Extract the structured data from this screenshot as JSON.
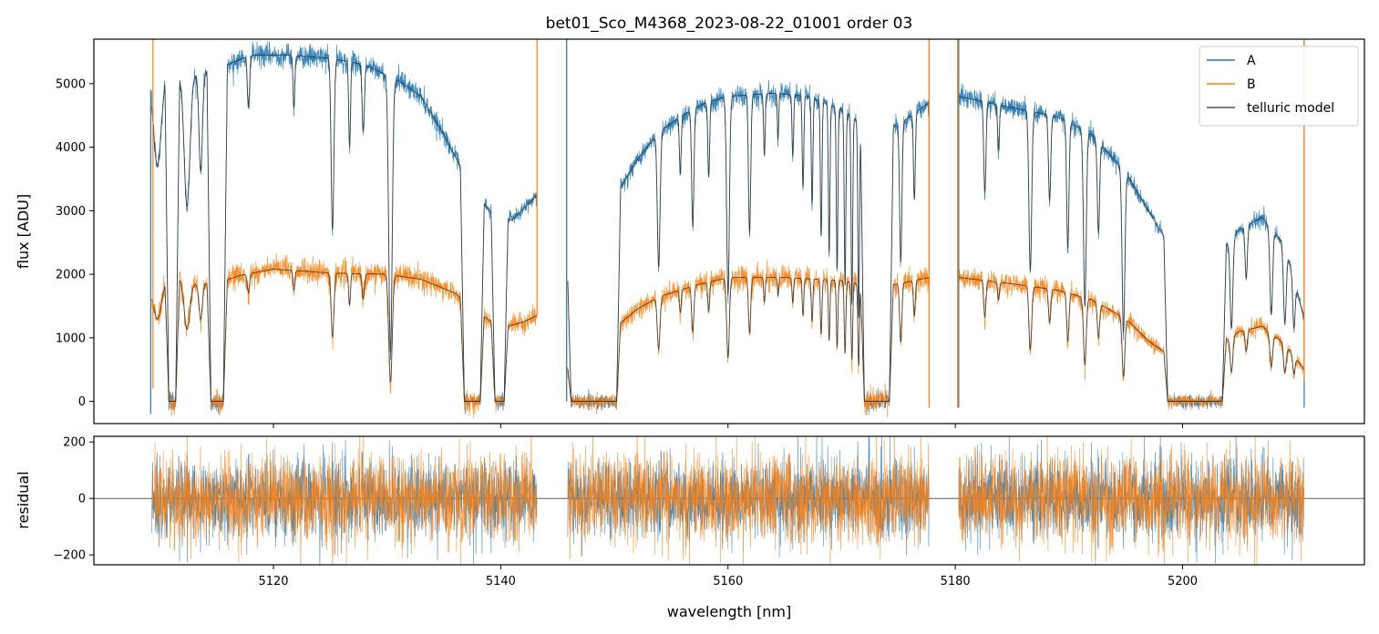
{
  "chart_data": [
    {
      "type": "line",
      "panel": "top",
      "title": "bet01_Sco_M4368_2023-08-22_01001  order 03",
      "xlabel": "",
      "ylabel": "flux [ADU]",
      "xlim": [
        5104.2,
        5216.0
      ],
      "ylim": [
        -350,
        5700
      ],
      "grid": false,
      "legend_position": "top-right",
      "x_ticks": [
        5120,
        5140,
        5160,
        5180,
        5200
      ],
      "y_ticks": [
        0,
        1000,
        2000,
        3000,
        4000,
        5000
      ],
      "y_tick_labels": [
        "0",
        "1000",
        "2000",
        "3000",
        "4000",
        "5000"
      ],
      "series": [
        {
          "name": "A",
          "color": "#1f77b4"
        },
        {
          "name": "B",
          "color": "#ff7f0e"
        },
        {
          "name": "telluric model",
          "color": "#555555"
        }
      ],
      "segments": [
        [
          5109.3,
          5143.2
        ],
        [
          5145.9,
          5177.7
        ],
        [
          5180.3,
          5210.7
        ]
      ],
      "continuum_A": [
        [
          5109.3,
          5200
        ],
        [
          5110,
          5330
        ],
        [
          5112,
          5100
        ],
        [
          5115,
          5230
        ],
        [
          5118,
          5450
        ],
        [
          5121,
          5450
        ],
        [
          5125,
          5400
        ],
        [
          5128,
          5300
        ],
        [
          5131,
          5050
        ],
        [
          5133,
          4800
        ],
        [
          5135,
          4200
        ],
        [
          5137,
          3500
        ],
        [
          5139,
          3000
        ],
        [
          5141,
          2850
        ],
        [
          5143.2,
          3250
        ],
        [
          5145.9,
          2200
        ],
        [
          5148,
          2700
        ],
        [
          5150,
          3200
        ],
        [
          5152,
          3800
        ],
        [
          5154,
          4250
        ],
        [
          5156,
          4500
        ],
        [
          5158,
          4700
        ],
        [
          5160,
          4800
        ],
        [
          5164,
          4850
        ],
        [
          5167,
          4800
        ],
        [
          5170,
          4600
        ],
        [
          5173,
          4200
        ],
        [
          5175,
          4350
        ],
        [
          5177.7,
          4700
        ],
        [
          5180.3,
          4800
        ],
        [
          5185,
          4620
        ],
        [
          5189,
          4480
        ],
        [
          5192,
          4200
        ],
        [
          5195,
          3600
        ],
        [
          5197,
          3000
        ],
        [
          5199,
          2400
        ],
        [
          5201,
          2100
        ],
        [
          5203,
          2300
        ],
        [
          5205,
          2700
        ],
        [
          5207,
          2900
        ],
        [
          5209,
          2450
        ],
        [
          5210.7,
          1300
        ]
      ],
      "continuum_B": [
        [
          5109.3,
          1800
        ],
        [
          5111,
          1980
        ],
        [
          5113,
          1850
        ],
        [
          5115,
          1850
        ],
        [
          5117,
          1980
        ],
        [
          5120,
          2080
        ],
        [
          5125,
          2020
        ],
        [
          5130,
          2000
        ],
        [
          5133,
          1920
        ],
        [
          5136,
          1700
        ],
        [
          5138,
          1400
        ],
        [
          5140,
          1150
        ],
        [
          5142,
          1250
        ],
        [
          5143.2,
          1350
        ],
        [
          5145.9,
          600
        ],
        [
          5148,
          850
        ],
        [
          5150,
          1150
        ],
        [
          5152,
          1450
        ],
        [
          5154,
          1650
        ],
        [
          5157,
          1820
        ],
        [
          5160,
          1950
        ],
        [
          5165,
          1950
        ],
        [
          5170,
          1900
        ],
        [
          5173,
          1800
        ],
        [
          5175,
          1850
        ],
        [
          5177.7,
          1950
        ],
        [
          5180.3,
          1950
        ],
        [
          5185,
          1850
        ],
        [
          5189,
          1750
        ],
        [
          5192,
          1600
        ],
        [
          5195,
          1300
        ],
        [
          5197,
          950
        ],
        [
          5199,
          700
        ],
        [
          5201,
          750
        ],
        [
          5203,
          900
        ],
        [
          5205,
          1100
        ],
        [
          5207,
          1180
        ],
        [
          5209,
          900
        ],
        [
          5210.7,
          500
        ]
      ],
      "saturated_bands": [
        [
          5110.8,
          5111.4
        ],
        [
          5114.5,
          5115.6
        ],
        [
          5136.8,
          5138.2
        ],
        [
          5139.5,
          5140.3
        ],
        [
          5146.2,
          5150.2
        ],
        [
          5172.0,
          5174.2
        ],
        [
          5198.7,
          5203.5
        ]
      ],
      "absorption_lines": [
        [
          5109.8,
          0.3,
          0.35
        ],
        [
          5112.4,
          0.4,
          0.25
        ],
        [
          5113.6,
          0.3,
          0.15
        ],
        [
          5117.8,
          0.15,
          0.1
        ],
        [
          5121.8,
          0.15,
          0.08
        ],
        [
          5125.2,
          0.5,
          0.12
        ],
        [
          5126.7,
          0.25,
          0.08
        ],
        [
          5127.9,
          0.2,
          0.1
        ],
        [
          5130.3,
          0.85,
          0.15
        ],
        [
          5153.9,
          0.5,
          0.12
        ],
        [
          5155.8,
          0.2,
          0.08
        ],
        [
          5156.9,
          0.4,
          0.1
        ],
        [
          5158.3,
          0.25,
          0.08
        ],
        [
          5160.0,
          0.65,
          0.12
        ],
        [
          5161.9,
          0.45,
          0.1
        ],
        [
          5163.2,
          0.2,
          0.07
        ],
        [
          5164.4,
          0.15,
          0.06
        ],
        [
          5165.7,
          0.2,
          0.07
        ],
        [
          5166.6,
          0.3,
          0.07
        ],
        [
          5167.4,
          0.35,
          0.07
        ],
        [
          5168.2,
          0.45,
          0.07
        ],
        [
          5168.9,
          0.5,
          0.07
        ],
        [
          5169.6,
          0.55,
          0.07
        ],
        [
          5170.3,
          0.6,
          0.07
        ],
        [
          5170.9,
          0.65,
          0.07
        ],
        [
          5171.5,
          0.7,
          0.07
        ],
        [
          5175.2,
          0.5,
          0.1
        ],
        [
          5176.4,
          0.3,
          0.08
        ],
        [
          5182.6,
          0.3,
          0.1
        ],
        [
          5183.8,
          0.15,
          0.08
        ],
        [
          5186.6,
          0.55,
          0.12
        ],
        [
          5188.3,
          0.3,
          0.1
        ],
        [
          5189.9,
          0.45,
          0.1
        ],
        [
          5191.4,
          0.65,
          0.12
        ],
        [
          5192.6,
          0.35,
          0.1
        ],
        [
          5194.8,
          0.7,
          0.12
        ],
        [
          5204.3,
          0.55,
          0.12
        ],
        [
          5205.6,
          0.3,
          0.1
        ],
        [
          5207.8,
          0.5,
          0.12
        ],
        [
          5209.0,
          0.5,
          0.12
        ],
        [
          5209.8,
          0.4,
          0.1
        ]
      ],
      "spikes": [
        [
          5109.2,
          "A",
          -200,
          4900
        ],
        [
          5109.4,
          "B",
          200,
          5700
        ],
        [
          5143.2,
          "B",
          1350,
          5700
        ],
        [
          5145.8,
          "A",
          0,
          5700
        ],
        [
          5177.7,
          "A",
          1800,
          5700
        ],
        [
          5177.7,
          "B",
          -100,
          5700
        ],
        [
          5180.3,
          "A",
          -100,
          5700
        ],
        [
          5180.2,
          "B",
          -100,
          5700
        ],
        [
          5210.7,
          "A",
          -100,
          5700
        ],
        [
          5210.7,
          "B",
          300,
          5700
        ]
      ]
    },
    {
      "type": "line",
      "panel": "bottom",
      "title": "",
      "xlabel": "wavelength [nm]",
      "ylabel": "residual",
      "xlim": [
        5104.2,
        5216.0
      ],
      "ylim": [
        -235,
        220
      ],
      "grid": false,
      "x_ticks": [
        5120,
        5140,
        5160,
        5180,
        5200
      ],
      "x_tick_labels": [
        "5120",
        "5140",
        "5160",
        "5180",
        "5200"
      ],
      "y_ticks": [
        -200,
        0,
        200
      ],
      "y_tick_labels": [
        "−200",
        "0",
        "200"
      ],
      "zero_line": 0,
      "noise_amplitude_A": 70,
      "noise_amplitude_B": 80,
      "segments": [
        [
          5109.3,
          5143.2
        ],
        [
          5145.9,
          5177.7
        ],
        [
          5180.3,
          5210.7
        ]
      ]
    }
  ]
}
